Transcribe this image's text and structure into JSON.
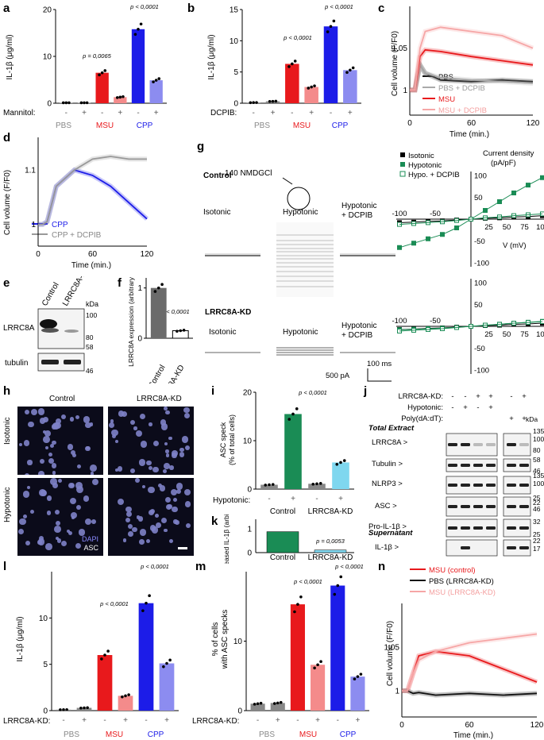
{
  "panels": {
    "a": "a",
    "b": "b",
    "c": "c",
    "d": "d",
    "e": "e",
    "f": "f",
    "g": "g",
    "h": "h",
    "i": "i",
    "j": "j",
    "k": "k",
    "l": "l",
    "m": "m",
    "n": "n"
  },
  "colors": {
    "pbs": "#888888",
    "msu": "#e8191c",
    "msu_light": "#f48b8b",
    "cpp": "#1c1ce8",
    "cpp_light": "#8c8cf0",
    "green": "#1a8c55",
    "cyan": "#7fd7ef"
  },
  "common": {
    "minus": "-",
    "plus": "+",
    "pbs": "PBS",
    "msu": "MSU",
    "cpp": "CPP"
  },
  "a": {
    "ylabel": "IL-1β (μg/ml)",
    "factor": "Mannitol:",
    "p1": "p = 0,0065",
    "p2": "p < 0,0001"
  },
  "b": {
    "ylabel": "IL-1β (μg/ml)",
    "factor": "DCPIB:",
    "p1": "p < 0,0001",
    "p2": "p < 0,0001"
  },
  "c": {
    "ylabel": "Cell volume (F/F0)",
    "xlabel": "Time (min.)",
    "legend": [
      "PBS",
      "PBS + DCPIB",
      "MSU",
      "MSU + DCPIB"
    ]
  },
  "d": {
    "ylabel": "Cell volume (F/F0)",
    "xlabel": "Time (min.)",
    "legend": [
      "CPP",
      "CPP + DCPIB"
    ]
  },
  "e": {
    "kda": "kDa",
    "col1": "Control",
    "col2": "LRRC8A-KD",
    "row1": "LRRC8A",
    "row2": "tubulin",
    "m100": "100",
    "m80": "80",
    "m58": "58",
    "m46": "46"
  },
  "f": {
    "ylabel": "LRRC8A expression (arbitrary unit)",
    "p": "p < 0,0001",
    "x1": "Control",
    "x2": "LRRC8A-KD"
  },
  "g": {
    "solution": "140 NMDGCl",
    "control": "Control",
    "kd": "LRRC8A-KD",
    "iso": "Isotonic",
    "hypo": "Hypotonic",
    "hypo_dcpib1": "Hypotonic",
    "hypo_dcpib2": "+ DCPIB",
    "scale_t": "100 ms",
    "scale_i": "500 pA",
    "legend": [
      "Isotonic",
      "Hypotonic",
      "Hypo. + DCPIB"
    ],
    "cd1": "Current density",
    "cd2": "(pA/pF)",
    "vlabel": "V (mV)"
  },
  "h": {
    "control": "Control",
    "kd": "LRRC8A-KD",
    "iso": "Isotonic",
    "hypo": "Hypotonic",
    "dapi": "DAPI",
    "asc": "ASC"
  },
  "i": {
    "ylabel1": "ASC speck",
    "ylabel2": "(% of total cells)",
    "factor": "Hypotonic:",
    "p": "p < 0,0001",
    "x1": "Control",
    "x2": "LRRC8A-KD"
  },
  "j": {
    "rows_head": [
      "LRRC8A-KD:",
      "Hypotonic:",
      "Poly(dA:dT):"
    ],
    "kd": [
      "-",
      "-",
      "+",
      "+",
      "-",
      "+"
    ],
    "hypo": [
      "-",
      "+",
      "-",
      "+",
      "",
      ""
    ],
    "poly": [
      "",
      "",
      "",
      "",
      "+",
      "+"
    ],
    "kda": "kDa",
    "total": "Total Extract",
    "sup": "Supernatant",
    "labels": [
      "LRRC8A >",
      "Tubulin >",
      "NLRP3 >",
      "ASC >",
      "Pro-IL-1β >",
      "IL-1β >"
    ],
    "markers": [
      "135",
      "100",
      "80",
      "58",
      "46",
      "135",
      "100",
      "25",
      "22",
      "46",
      "32",
      "25",
      "22",
      "17"
    ]
  },
  "k": {
    "ylabel": "Released IL-1β (arbitrary unit)",
    "p": "p = 0,0053",
    "x1": "Control",
    "x2": "LRRC8A-KD"
  },
  "l": {
    "ylabel": "IL-1β (μg/ml)",
    "factor": "LRRC8A-KD:",
    "p1": "p < 0,0001",
    "p2": "p < 0,0001"
  },
  "m": {
    "ylabel1": "% of cells",
    "ylabel2": "with ASC specks",
    "factor": "LRRC8A-KD:",
    "p1": "p < 0,0001",
    "p2": "p < 0,0001"
  },
  "n": {
    "ylabel": "Cell volume (F/F0)",
    "xlabel": "Time (min.)",
    "legend": [
      "MSU (control)",
      "PBS (LRRC8A-KD)",
      "MSU (LRRC8A-KD)"
    ]
  },
  "chart_data": [
    {
      "id": "a",
      "type": "bar",
      "categories": [
        "PBS -",
        "PBS +",
        "MSU -",
        "MSU +",
        "CPP -",
        "CPP +"
      ],
      "values": [
        0.1,
        0.1,
        6.5,
        1.3,
        15.8,
        4.9
      ],
      "ylim": [
        0,
        20
      ],
      "yticks": [
        0,
        10,
        20
      ],
      "ylabel": "IL-1β (μg/ml)"
    },
    {
      "id": "b",
      "type": "bar",
      "categories": [
        "PBS -",
        "PBS +",
        "MSU -",
        "MSU +",
        "CPP -",
        "CPP +"
      ],
      "values": [
        0.1,
        0.3,
        6.3,
        2.6,
        12.3,
        5.3
      ],
      "ylim": [
        0,
        15
      ],
      "yticks": [
        0,
        5,
        10,
        15
      ],
      "ylabel": "IL-1β (μg/ml)"
    },
    {
      "id": "f",
      "type": "bar",
      "categories": [
        "Control",
        "LRRC8A-KD"
      ],
      "values": [
        1.0,
        0.15
      ],
      "ylim": [
        0,
        1.2
      ],
      "yticks": [
        0,
        1
      ]
    },
    {
      "id": "i",
      "type": "bar",
      "categories": [
        "Control -",
        "Control +",
        "LRRC8A-KD -",
        "LRRC8A-KD +"
      ],
      "values": [
        0.9,
        15.5,
        1.1,
        5.5
      ],
      "ylim": [
        0,
        20
      ],
      "yticks": [
        0,
        10,
        20
      ]
    },
    {
      "id": "k",
      "type": "bar",
      "categories": [
        "Control",
        "LRRC8A-KD"
      ],
      "values": [
        0.88,
        0.11
      ],
      "ylim": [
        0,
        1.4
      ],
      "yticks": [
        0,
        1
      ]
    },
    {
      "id": "l",
      "type": "bar",
      "categories": [
        "PBS -",
        "PBS +",
        "MSU -",
        "MSU +",
        "CPP -",
        "CPP +"
      ],
      "values": [
        0.1,
        0.3,
        6.0,
        1.6,
        11.6,
        5.1
      ],
      "ylim": [
        0,
        15
      ],
      "yticks": [
        0,
        5,
        10
      ]
    },
    {
      "id": "m",
      "type": "bar",
      "categories": [
        "PBS -",
        "PBS +",
        "MSU -",
        "MSU +",
        "CPP -",
        "CPP +"
      ],
      "values": [
        1.0,
        1.1,
        15.3,
        6.6,
        18.0,
        4.9
      ],
      "ylim": [
        0,
        20
      ],
      "yticks": [
        0,
        10
      ]
    },
    {
      "id": "c",
      "type": "line",
      "x": [
        0,
        5,
        10,
        15,
        30,
        60,
        90,
        120
      ],
      "xticks": [
        0,
        60,
        120
      ],
      "yticks": [
        1,
        1.05
      ],
      "ylim": [
        0.97,
        1.1
      ],
      "series": [
        {
          "name": "PBS",
          "values": [
            1,
            1,
            1.03,
            1.02,
            1.012,
            1.01,
            1.012,
            1.01
          ]
        },
        {
          "name": "PBS + DCPIB",
          "values": [
            1,
            1,
            1.03,
            1.02,
            1.015,
            1.012,
            1.01,
            1.008
          ]
        },
        {
          "name": "MSU",
          "values": [
            1,
            1,
            1.04,
            1.048,
            1.046,
            1.04,
            1.035,
            1.03
          ]
        },
        {
          "name": "MSU + DCPIB",
          "values": [
            1,
            1,
            1.05,
            1.07,
            1.075,
            1.07,
            1.065,
            1.05
          ]
        }
      ]
    },
    {
      "id": "d",
      "type": "line",
      "x": [
        0,
        5,
        10,
        20,
        40,
        60,
        80,
        100,
        120
      ],
      "xticks": [
        0,
        60,
        120
      ],
      "yticks": [
        1,
        1.1
      ],
      "ylim": [
        0.96,
        1.16
      ],
      "series": [
        {
          "name": "CPP",
          "values": [
            1,
            1,
            1.005,
            1.07,
            1.1,
            1.09,
            1.07,
            1.04,
            1.01
          ]
        },
        {
          "name": "CPP + DCPIB",
          "values": [
            1,
            1,
            1.005,
            1.07,
            1.1,
            1.12,
            1.125,
            1.12,
            1.12
          ]
        }
      ]
    },
    {
      "id": "n",
      "type": "line",
      "x": [
        0,
        5,
        10,
        15,
        30,
        60,
        90,
        120
      ],
      "xticks": [
        0,
        60,
        120
      ],
      "yticks": [
        1,
        1.05
      ],
      "ylim": [
        0.97,
        1.1
      ],
      "series": [
        {
          "name": "MSU (control)",
          "values": [
            1,
            1,
            1.02,
            1.04,
            1.045,
            1.04,
            1.025,
            1.01
          ]
        },
        {
          "name": "PBS (LRRC8A-KD)",
          "values": [
            1,
            1,
            0.997,
            0.998,
            0.995,
            0.997,
            0.995,
            0.997
          ]
        },
        {
          "name": "MSU (LRRC8A-KD)",
          "values": [
            1,
            1,
            1.02,
            1.035,
            1.045,
            1.055,
            1.06,
            1.065
          ]
        }
      ]
    },
    {
      "id": "g",
      "type": "line",
      "x": [
        -100,
        -80,
        -60,
        -40,
        -20,
        0,
        20,
        40,
        60,
        80,
        100
      ],
      "xticks": [
        -100,
        -50,
        25,
        50,
        75,
        100
      ],
      "yticks": [
        -100,
        -50,
        50,
        100
      ],
      "series": [
        {
          "name": "Isotonic",
          "values": [
            -8,
            -7,
            -5,
            -4,
            -2,
            0,
            2,
            3,
            5,
            6,
            8
          ]
        },
        {
          "name": "Hypotonic",
          "values": [
            -65,
            -55,
            -45,
            -35,
            -20,
            0,
            20,
            40,
            60,
            78,
            95
          ]
        },
        {
          "name": "Hypo. + DCPIB",
          "values": [
            -12,
            -10,
            -8,
            -6,
            -3,
            0,
            3,
            5,
            8,
            10,
            12
          ]
        }
      ]
    }
  ]
}
